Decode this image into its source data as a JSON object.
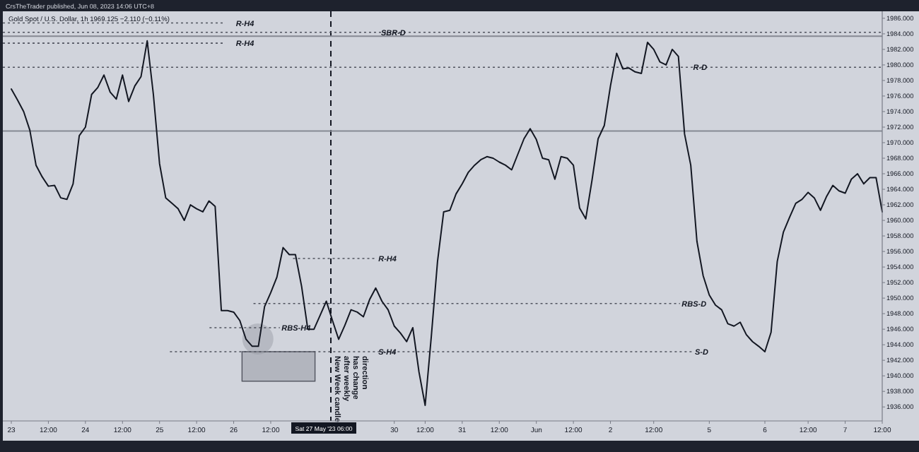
{
  "chart_data": {
    "type": "line",
    "title": "Gold Spot / U.S. Dollar, 1h  1969.125  −2.110 (−0.11%)",
    "annotations": [
      "CrsTheTrader published, Jun 08, 2023 14:06 UTC+8",
      "Sat 27 May '23  06:00",
      "New Week candle\nafter weekly\nhas change\ndirection",
      "S-D"
    ],
    "categories": [
      "23",
      null,
      null,
      null,
      null,
      null,
      "12:00",
      null,
      null,
      null,
      null,
      null,
      "24",
      null,
      null,
      null,
      null,
      null,
      "12:00",
      null,
      null,
      null,
      null,
      null,
      "25",
      null,
      null,
      null,
      null,
      null,
      "12:00",
      null,
      null,
      null,
      null,
      null,
      "26",
      null,
      null,
      null,
      null,
      null,
      "12:00",
      null,
      null,
      null,
      null,
      null,
      null,
      null,
      null,
      null,
      null,
      null,
      null,
      null,
      null,
      null,
      null,
      null,
      null,
      null,
      "30",
      null,
      null,
      null,
      null,
      "12:00",
      null,
      null,
      null,
      null,
      null,
      "31",
      null,
      null,
      null,
      null,
      null,
      "12:00",
      null,
      null,
      null,
      null,
      null,
      "Jun",
      null,
      null,
      null,
      null,
      null,
      "12:00",
      null,
      null,
      null,
      null,
      null,
      "2",
      null,
      null,
      null,
      null,
      null,
      null,
      "12:00",
      null,
      null,
      null,
      null,
      null,
      null,
      null,
      null,
      "5",
      null,
      null,
      null,
      null,
      null,
      null,
      null,
      null,
      "6",
      null,
      null,
      null,
      null,
      null,
      null,
      "12:00",
      null,
      null,
      null,
      null,
      null,
      "7",
      null,
      null,
      null,
      null,
      null,
      "12:00"
    ],
    "series": [
      {
        "color": "#131722",
        "values": [
          1976.9,
          1975.5,
          1974.0,
          1971.6,
          1967.1,
          1965.6,
          1964.4,
          1964.5,
          1962.9,
          1962.7,
          1964.7,
          1970.9,
          1972.0,
          1976.2,
          1977.1,
          1978.7,
          1976.5,
          1975.6,
          1978.7,
          1975.3,
          1977.3,
          1978.5,
          1983.1,
          1976.2,
          1967.3,
          1962.9,
          1962.2,
          1961.5,
          1960.0,
          1962.0,
          1961.5,
          1961.1,
          1962.5,
          1961.8,
          1948.4,
          1948.4,
          1948.2,
          1947.1,
          1944.7,
          1943.8,
          1943.8,
          1948.9,
          1950.7,
          1952.7,
          1956.5,
          1955.6,
          1955.6,
          1951.5,
          1946.0,
          1946.0,
          1947.8,
          1949.6,
          1947.1,
          1944.7,
          1946.5,
          1948.5,
          1948.2,
          1947.6,
          1949.8,
          1951.3,
          1949.6,
          1948.5,
          1946.4,
          1945.5,
          1944.4,
          1946.2,
          1940.5,
          1936.2,
          1945.1,
          1954.7,
          1961.1,
          1961.3,
          1963.4,
          1964.7,
          1966.2,
          1967.1,
          1967.8,
          1968.2,
          1968.0,
          1967.5,
          1967.1,
          1966.5,
          1968.5,
          1970.5,
          1971.8,
          1970.4,
          1968.0,
          1967.8,
          1965.3,
          1968.2,
          1968.0,
          1967.1,
          1961.6,
          1960.2,
          1965.1,
          1970.5,
          1972.2,
          1977.3,
          1981.5,
          1979.5,
          1979.6,
          1979.1,
          1978.9,
          1982.9,
          1982.0,
          1980.4,
          1980.0,
          1982.0,
          1981.1,
          1971.1,
          1967.1,
          1957.3,
          1952.9,
          1950.4,
          1949.1,
          1948.5,
          1946.7,
          1946.4,
          1946.9,
          1945.3,
          1944.4,
          1943.8,
          1943.1,
          1945.6,
          1954.7,
          1958.5,
          1960.4,
          1962.2,
          1962.7,
          1963.6,
          1962.9,
          1961.3,
          1963.1,
          1964.5,
          1963.8,
          1963.5,
          1965.3,
          1966.0,
          1964.7,
          1965.5,
          1965.5,
          1961.1
        ]
      }
    ],
    "ylim": [
      1934.2,
      1986.9
    ],
    "yticks": [
      {
        "value": 1936,
        "label": "1936.000"
      },
      {
        "value": 1938,
        "label": "1938.000"
      },
      {
        "value": 1940,
        "label": "1940.000"
      },
      {
        "value": 1942,
        "label": "1942.000"
      },
      {
        "value": 1944,
        "label": "1944.000"
      },
      {
        "value": 1946,
        "label": "1946.000"
      },
      {
        "value": 1948,
        "label": "1948.000"
      },
      {
        "value": 1950,
        "label": "1950.000"
      },
      {
        "value": 1952,
        "label": "1952.000"
      },
      {
        "value": 1954,
        "label": "1954.000"
      },
      {
        "value": 1956,
        "label": "1956.000"
      },
      {
        "value": 1958,
        "label": "1958.000"
      },
      {
        "value": 1960,
        "label": "1960.000"
      },
      {
        "value": 1962,
        "label": "1962.000"
      },
      {
        "value": 1964,
        "label": "1964.000"
      },
      {
        "value": 1966,
        "label": "1966.000"
      },
      {
        "value": 1968,
        "label": "1968.000"
      },
      {
        "value": 1970,
        "label": "1970.000"
      },
      {
        "value": 1972,
        "label": "1972.000"
      },
      {
        "value": 1974,
        "label": "1974.000"
      },
      {
        "value": 1976,
        "label": "1976.000"
      },
      {
        "value": 1978,
        "label": "1978.000"
      },
      {
        "value": 1980,
        "label": "1980.000"
      },
      {
        "value": 1982,
        "label": "1982.000"
      },
      {
        "value": 1984,
        "label": "1984.000"
      },
      {
        "value": 1986,
        "label": "1986.000"
      }
    ],
    "ref_lines": [
      {
        "axis": "y",
        "value": 1985.4,
        "label": "R-H4",
        "line_style": "dotted"
      },
      {
        "axis": "y",
        "value": 1984.2,
        "label": "SBR-D",
        "line_style": "dotted"
      },
      {
        "axis": "y",
        "value": 1983.7,
        "line_style": "solid"
      },
      {
        "axis": "y",
        "value": 1982.8,
        "label": "R-H4",
        "line_style": "dotted"
      },
      {
        "axis": "y",
        "value": 1979.7,
        "label": "R-D",
        "line_style": "dotted"
      },
      {
        "axis": "y",
        "value": 1971.5,
        "line_style": "solid"
      },
      {
        "axis": "y",
        "value": 1955.1,
        "label": "R-H4",
        "line_style": "dotted"
      },
      {
        "axis": "y",
        "value": 1949.3,
        "label": "RBS-D",
        "line_style": "dotted"
      },
      {
        "axis": "y",
        "value": 1946.2,
        "label": "RBS-H4",
        "line_style": "dotted"
      },
      {
        "axis": "y",
        "value": 1943.1,
        "label": "S-H4",
        "line_style": "dotted"
      }
    ],
    "grid": false,
    "marker": "none",
    "line_style": "solid"
  }
}
